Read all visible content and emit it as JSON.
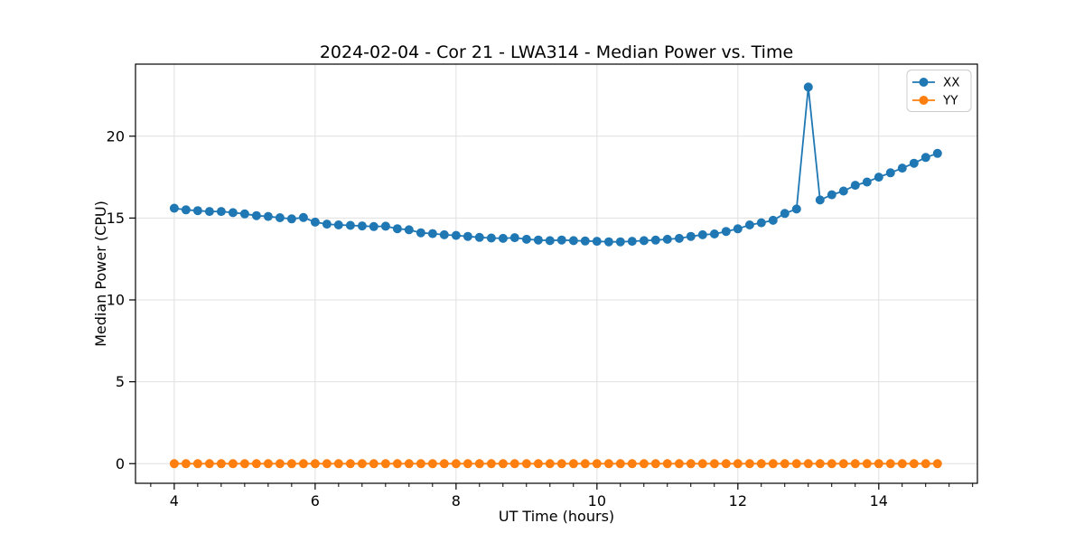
{
  "chart_data": {
    "type": "line",
    "title": "2024-02-04 - Cor 21 - LWA314 - Median Power vs. Time",
    "xlabel": "UT Time (hours)",
    "ylabel": "Median Power (CPU)",
    "xlim": [
      3.45,
      15.4
    ],
    "ylim": [
      -1.2,
      24.4
    ],
    "xticks": [
      4,
      6,
      8,
      10,
      12,
      14
    ],
    "yticks": [
      0,
      5,
      10,
      15,
      20
    ],
    "x_minor_step": 0.3333,
    "grid": true,
    "legend_position": "upper right",
    "colors": {
      "xx": "#1f77b4",
      "yy": "#ff7f0e",
      "grid": "#e0e0e0",
      "spine": "#000000",
      "legend_border": "#cccccc"
    },
    "x": [
      4.0,
      4.167,
      4.333,
      4.5,
      4.667,
      4.833,
      5.0,
      5.167,
      5.333,
      5.5,
      5.667,
      5.833,
      6.0,
      6.167,
      6.333,
      6.5,
      6.667,
      6.833,
      7.0,
      7.167,
      7.333,
      7.5,
      7.667,
      7.833,
      8.0,
      8.167,
      8.333,
      8.5,
      8.667,
      8.833,
      9.0,
      9.167,
      9.333,
      9.5,
      9.667,
      9.833,
      10.0,
      10.167,
      10.333,
      10.5,
      10.667,
      10.833,
      11.0,
      11.167,
      11.333,
      11.5,
      11.667,
      11.833,
      12.0,
      12.167,
      12.333,
      12.5,
      12.667,
      12.833,
      13.0,
      13.167,
      13.333,
      13.5,
      13.667,
      13.833,
      14.0,
      14.167,
      14.333,
      14.5,
      14.667,
      14.833
    ],
    "series": [
      {
        "name": "XX",
        "color": "#1f77b4",
        "values": [
          15.6,
          15.5,
          15.45,
          15.4,
          15.4,
          15.33,
          15.25,
          15.15,
          15.1,
          15.02,
          14.95,
          15.03,
          14.75,
          14.63,
          14.58,
          14.55,
          14.52,
          14.48,
          14.5,
          14.35,
          14.28,
          14.1,
          14.05,
          13.98,
          13.94,
          13.88,
          13.82,
          13.78,
          13.76,
          13.8,
          13.7,
          13.66,
          13.62,
          13.66,
          13.62,
          13.6,
          13.58,
          13.55,
          13.55,
          13.58,
          13.62,
          13.65,
          13.7,
          13.76,
          13.88,
          13.98,
          14.03,
          14.18,
          14.34,
          14.58,
          14.71,
          14.86,
          15.28,
          15.55,
          23.0,
          16.1,
          16.42,
          16.65,
          17.0,
          17.2,
          17.5,
          17.76,
          18.05,
          18.35,
          18.7,
          18.95
        ]
      },
      {
        "name": "YY",
        "color": "#ff7f0e",
        "values": [
          0,
          0,
          0,
          0,
          0,
          0,
          0,
          0,
          0,
          0,
          0,
          0,
          0,
          0,
          0,
          0,
          0,
          0,
          0,
          0,
          0,
          0,
          0,
          0,
          0,
          0,
          0,
          0,
          0,
          0,
          0,
          0,
          0,
          0,
          0,
          0,
          0,
          0,
          0,
          0,
          0,
          0,
          0,
          0,
          0,
          0,
          0,
          0,
          0,
          0,
          0,
          0,
          0,
          0,
          0,
          0,
          0,
          0,
          0,
          0,
          0,
          0,
          0,
          0,
          0,
          0
        ]
      }
    ]
  }
}
